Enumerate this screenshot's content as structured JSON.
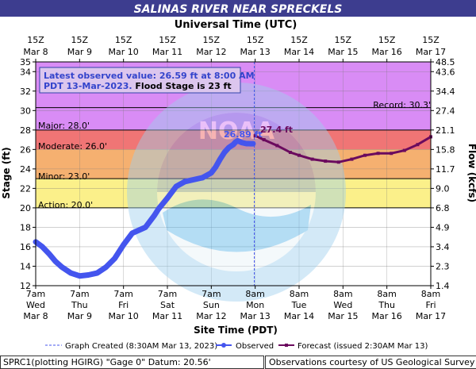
{
  "header": {
    "title": "SALINAS RIVER NEAR SPRECKELS",
    "top_axis_title": "Universal Time (UTC)"
  },
  "colors": {
    "title_bar": "#3d3d8f",
    "record_zone": "#d98cf5",
    "major_zone": "#f07575",
    "moderate_zone": "#f5b070",
    "minor_zone": "#fbf08a",
    "normal_zone": "#ffffff",
    "observed": "#4455ee",
    "forecast": "#6b0a5e",
    "now_line": "#4455ee"
  },
  "info_box": {
    "line1": "Latest observed value: 26.59 ft at 8:00 AM",
    "line2_date": "PDT 13-Mar-2023.",
    "line2_flood": "Flood Stage is 23  ft"
  },
  "thresholds": {
    "record_label": "Record:  30.3'",
    "major_label": "Major:  28.0'",
    "moderate_label": "Moderate:  26.0'",
    "minor_label": "Minor:  23.0'",
    "action_label": "Action:  20.0'"
  },
  "annotations": {
    "observed_peak": "26.89 ft",
    "forecast_peak": "27.4 ft"
  },
  "axes": {
    "y_left_title": "Stage (ft)",
    "y_right_title": "Flow (kcfs)",
    "x_bottom_title": "Site Time (PDT)",
    "utc_ticks": [
      {
        "hour": "15Z",
        "date": "Mar  8"
      },
      {
        "hour": "15Z",
        "date": "Mar  9"
      },
      {
        "hour": "15Z",
        "date": "Mar 10"
      },
      {
        "hour": "15Z",
        "date": "Mar 11"
      },
      {
        "hour": "15Z",
        "date": "Mar 12"
      },
      {
        "hour": "15Z",
        "date": "Mar 13"
      },
      {
        "hour": "15Z",
        "date": "Mar 14"
      },
      {
        "hour": "15Z",
        "date": "Mar 15"
      },
      {
        "hour": "15Z",
        "date": "Mar 16"
      },
      {
        "hour": "15Z",
        "date": "Mar 17"
      }
    ],
    "site_ticks": [
      {
        "time": "7am",
        "day": "Wed",
        "date": "Mar 8"
      },
      {
        "time": "7am",
        "day": "Thu",
        "date": "Mar 9"
      },
      {
        "time": "7am",
        "day": "Fri",
        "date": "Mar 10"
      },
      {
        "time": "7am",
        "day": "Sat",
        "date": "Mar 11"
      },
      {
        "time": "7am",
        "day": "Sun",
        "date": "Mar 12"
      },
      {
        "time": "8am",
        "day": "Mon",
        "date": "Mar 13"
      },
      {
        "time": "8am",
        "day": "Tue",
        "date": "Mar 14"
      },
      {
        "time": "8am",
        "day": "Wed",
        "date": "Mar 15"
      },
      {
        "time": "8am",
        "day": "Thu",
        "date": "Mar 16"
      },
      {
        "time": "8am",
        "day": "Fri",
        "date": "Mar 17"
      }
    ],
    "stage_ticks": [
      "12",
      "14",
      "16",
      "18",
      "20",
      "22",
      "24",
      "26",
      "28",
      "30",
      "32",
      "34",
      "35"
    ],
    "flow_ticks": [
      "1.4",
      "2.3",
      "3.4",
      "4.9",
      "6.8",
      "9.0",
      "11.7",
      "15.8",
      "21.1",
      "27.4",
      "34.4",
      "43.6",
      "48.5"
    ]
  },
  "legend": {
    "graph_created": "Graph Created (8:30AM Mar 13, 2023)",
    "observed": "Observed",
    "forecast": "Forecast (issued 2:30AM Mar 13)"
  },
  "footer": {
    "left": "SPRC1(plotting HGIRG) \"Gage 0\" Datum: 20.56'",
    "right": "Observations courtesy of US Geological Survey"
  },
  "chart_data": {
    "type": "line",
    "title": "SALINAS RIVER NEAR SPRECKELS",
    "xlabel": "Site Time (PDT)",
    "ylabel": "Stage (ft)",
    "ylabel_right": "Flow (kcfs)",
    "x_unit": "days since 7am PDT Mar 8",
    "xlim": [
      0,
      9
    ],
    "ylim": [
      12,
      35
    ],
    "stage_ticks": [
      12,
      14,
      16,
      18,
      20,
      22,
      24,
      26,
      28,
      30,
      32,
      34,
      35
    ],
    "thresholds": {
      "action": 20.0,
      "minor": 23.0,
      "moderate": 26.0,
      "major": 28.0,
      "record": 30.3
    },
    "latest_observed": {
      "value": 26.59,
      "time": "8:00 AM PDT 13-Mar-2023"
    },
    "graph_created_x": 4.98,
    "series": [
      {
        "name": "Observed",
        "x": [
          0,
          0.15,
          0.3,
          0.45,
          0.6,
          0.8,
          1.0,
          1.2,
          1.4,
          1.6,
          1.8,
          2.0,
          2.2,
          2.4,
          2.5,
          2.6,
          2.7,
          2.8,
          3.0,
          3.2,
          3.4,
          3.6,
          3.8,
          4.0,
          4.1,
          4.2,
          4.3,
          4.4,
          4.5,
          4.55,
          4.6,
          4.65,
          4.7,
          4.75,
          4.8,
          4.85,
          4.9,
          4.95
        ],
        "y": [
          16.5,
          16.0,
          15.3,
          14.5,
          13.9,
          13.3,
          13.0,
          13.1,
          13.3,
          13.9,
          14.8,
          16.2,
          17.4,
          17.8,
          18.0,
          18.6,
          19.2,
          19.9,
          21.0,
          22.2,
          22.7,
          22.9,
          23.1,
          23.6,
          24.2,
          25.0,
          25.7,
          26.2,
          26.5,
          26.75,
          26.89,
          26.8,
          26.7,
          26.65,
          26.6,
          26.6,
          26.59,
          26.59
        ]
      },
      {
        "name": "Forecast",
        "x": [
          5.0,
          5.2,
          5.5,
          5.8,
          6.0,
          6.3,
          6.6,
          6.9,
          7.2,
          7.5,
          7.8,
          8.1,
          8.4,
          8.7,
          9.0
        ],
        "y": [
          27.4,
          27.0,
          26.4,
          25.7,
          25.4,
          25.0,
          24.8,
          24.7,
          25.0,
          25.4,
          25.6,
          25.6,
          25.9,
          26.5,
          27.3
        ]
      }
    ]
  }
}
